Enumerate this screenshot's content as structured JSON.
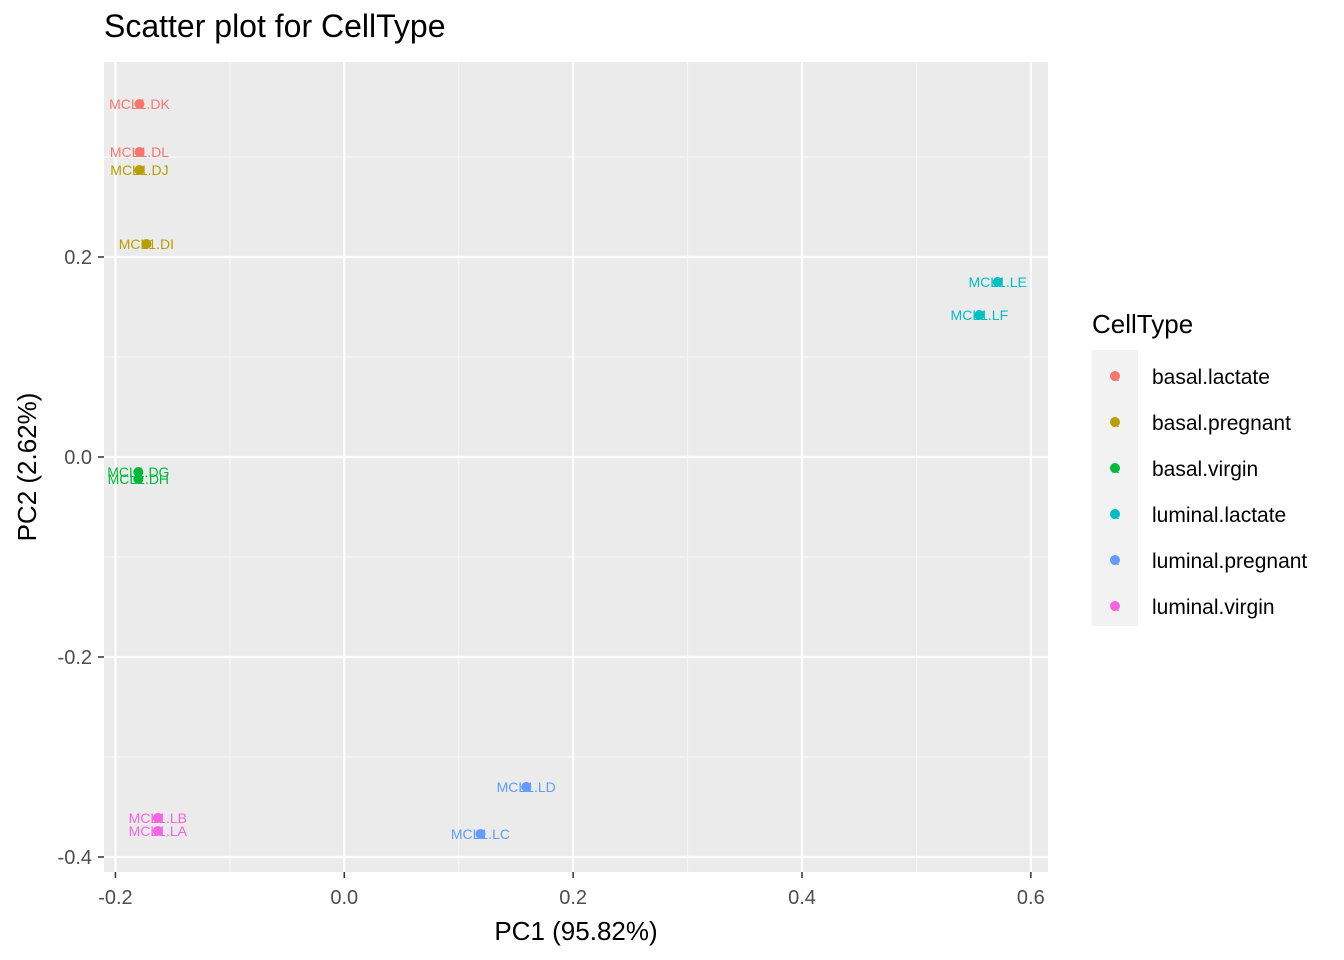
{
  "chart_data": {
    "type": "scatter",
    "title": "Scatter plot for CellType",
    "xlabel": "PC1 (95.82%)",
    "ylabel": "PC2 (2.62%)",
    "xlim": [
      -0.21,
      0.615
    ],
    "ylim": [
      -0.415,
      0.395
    ],
    "x_ticks": [
      -0.2,
      0.0,
      0.2,
      0.4,
      0.6
    ],
    "x_tick_labels": [
      "-0.2",
      "0.0",
      "0.2",
      "0.4",
      "0.6"
    ],
    "y_ticks": [
      -0.4,
      -0.2,
      0.0,
      0.2
    ],
    "y_tick_labels": [
      "-0.4",
      "-0.2",
      "0.0",
      "0.2"
    ],
    "grid": true,
    "legend": {
      "title": "CellType",
      "placement": "right",
      "entries": [
        {
          "name": "basal.lactate",
          "color": "#F8766D"
        },
        {
          "name": "basal.pregnant",
          "color": "#B79F00"
        },
        {
          "name": "basal.virgin",
          "color": "#00BA38"
        },
        {
          "name": "luminal.lactate",
          "color": "#00BFC4"
        },
        {
          "name": "luminal.pregnant",
          "color": "#619CFF"
        },
        {
          "name": "luminal.virgin",
          "color": "#F564E3"
        }
      ]
    },
    "points": [
      {
        "label": "MCL1.DK",
        "x": -0.179,
        "y": 0.353,
        "group": "basal.lactate"
      },
      {
        "label": "MCL1.DL",
        "x": -0.179,
        "y": 0.305,
        "group": "basal.lactate"
      },
      {
        "label": "MCL1.DJ",
        "x": -0.179,
        "y": 0.287,
        "group": "basal.pregnant"
      },
      {
        "label": "MCL1.DI",
        "x": -0.173,
        "y": 0.213,
        "group": "basal.pregnant"
      },
      {
        "label": "MCL1.DG",
        "x": -0.18,
        "y": -0.015,
        "group": "basal.virgin"
      },
      {
        "label": "MCL1.DH",
        "x": -0.18,
        "y": -0.022,
        "group": "basal.virgin"
      },
      {
        "label": "MCL1.LE",
        "x": 0.571,
        "y": 0.175,
        "group": "luminal.lactate"
      },
      {
        "label": "MCL1.LF",
        "x": 0.555,
        "y": 0.142,
        "group": "luminal.lactate"
      },
      {
        "label": "MCL1.LD",
        "x": 0.159,
        "y": -0.33,
        "group": "luminal.pregnant"
      },
      {
        "label": "MCL1.LC",
        "x": 0.119,
        "y": -0.377,
        "group": "luminal.pregnant"
      },
      {
        "label": "MCL1.LB",
        "x": -0.163,
        "y": -0.361,
        "group": "luminal.virgin"
      },
      {
        "label": "MCL1.LA",
        "x": -0.163,
        "y": -0.374,
        "group": "luminal.virgin"
      }
    ]
  }
}
